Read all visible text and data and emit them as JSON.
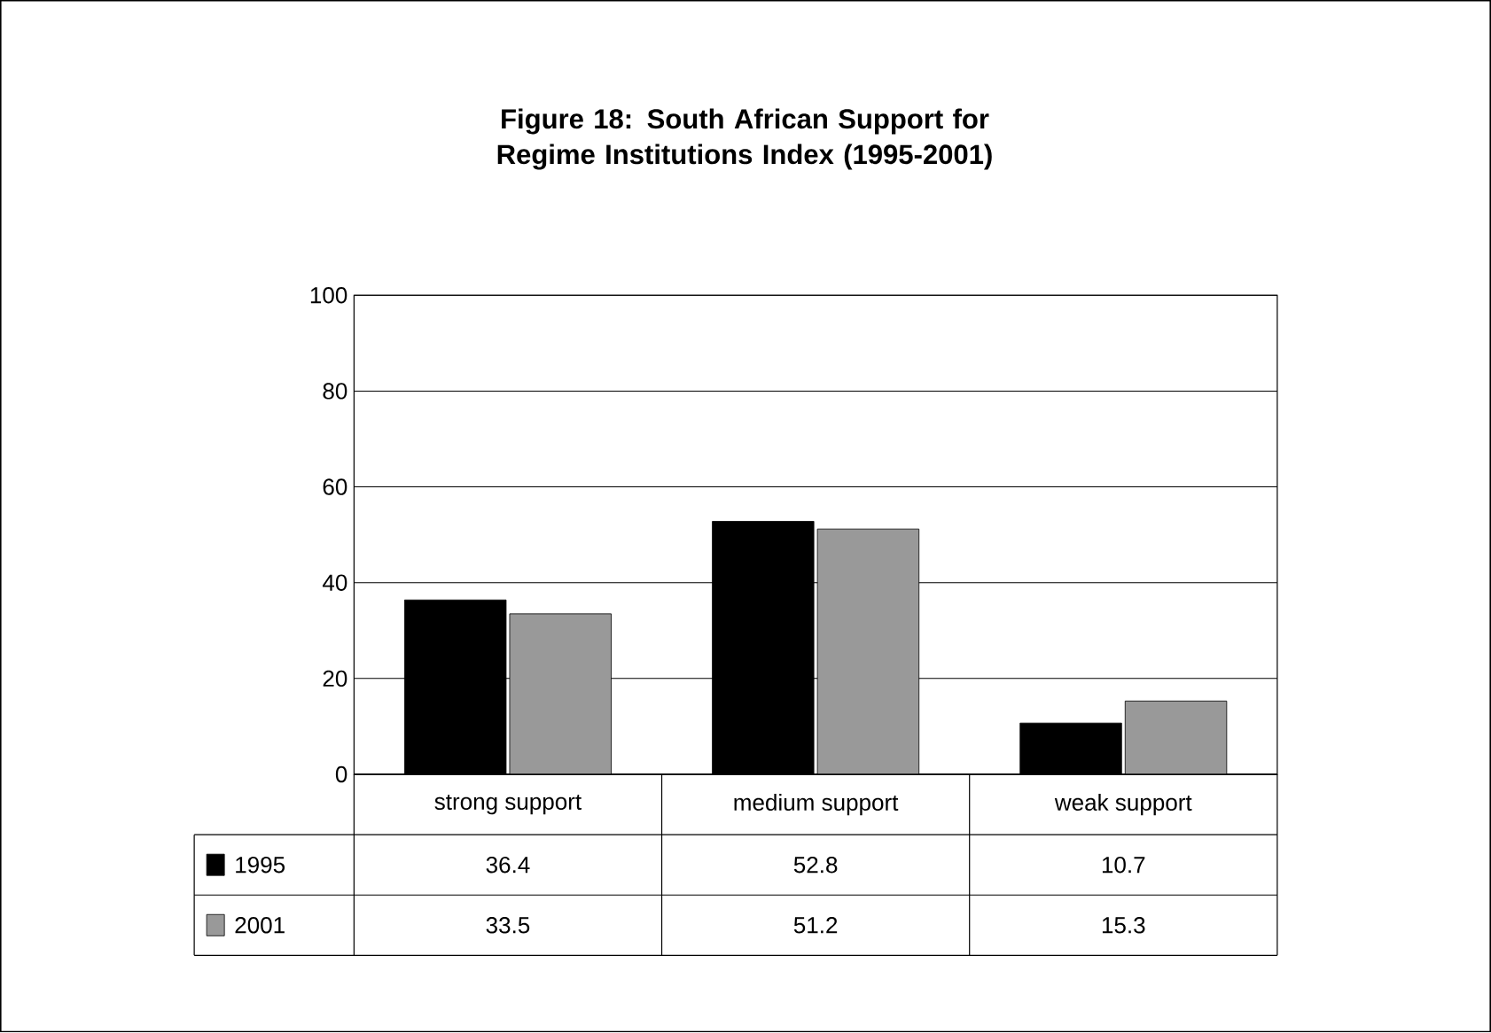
{
  "chart_data": {
    "type": "bar",
    "title": "Figure 18: South African Support for Regime Institutions Index (1995-2001)",
    "categories": [
      "strong support",
      "medium support",
      "weak support"
    ],
    "series": [
      {
        "name": "1995",
        "color": "#000000",
        "values": [
          36.4,
          52.8,
          10.7
        ]
      },
      {
        "name": "2001",
        "color": "#999999",
        "values": [
          33.5,
          51.2,
          15.3
        ]
      }
    ],
    "ylim": [
      0,
      100
    ],
    "yticks": [
      0,
      20,
      40,
      60,
      80,
      100
    ],
    "grid": "y",
    "legend": "bottom",
    "data_labels": true
  }
}
